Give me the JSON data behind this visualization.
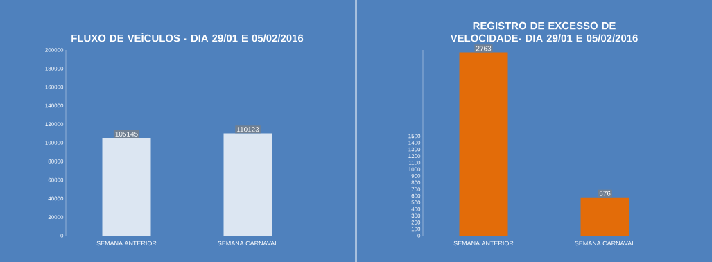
{
  "chart_data": [
    {
      "type": "bar",
      "title": "FLUXO DE VEÍCULOS - DIA 29/01 E 05/02/2016",
      "categories": [
        "SEMANA ANTERIOR",
        "SEMANA CARNAVAL"
      ],
      "values": [
        105145,
        110123
      ],
      "color": "#dce6f2",
      "ylim": [
        0,
        200000
      ],
      "yticks": [
        0,
        20000,
        40000,
        60000,
        80000,
        100000,
        120000,
        140000,
        160000,
        180000,
        200000
      ],
      "data_labels": true
    },
    {
      "type": "bar",
      "title": "REGISTRO DE EXCESSO DE VELOCIDADE- DIA 29/01 E 05/02/2016",
      "categories": [
        "SEMANA ANTERIOR",
        "SEMANA CARNAVAL"
      ],
      "values": [
        2763,
        576
      ],
      "color": "#e36c09",
      "ylim": [
        0,
        2800
      ],
      "yticks": [
        0,
        100,
        200,
        300,
        400,
        500,
        600,
        700,
        800,
        900,
        1000,
        1100,
        1200,
        1300,
        1400,
        1500
      ],
      "data_labels": true
    }
  ]
}
